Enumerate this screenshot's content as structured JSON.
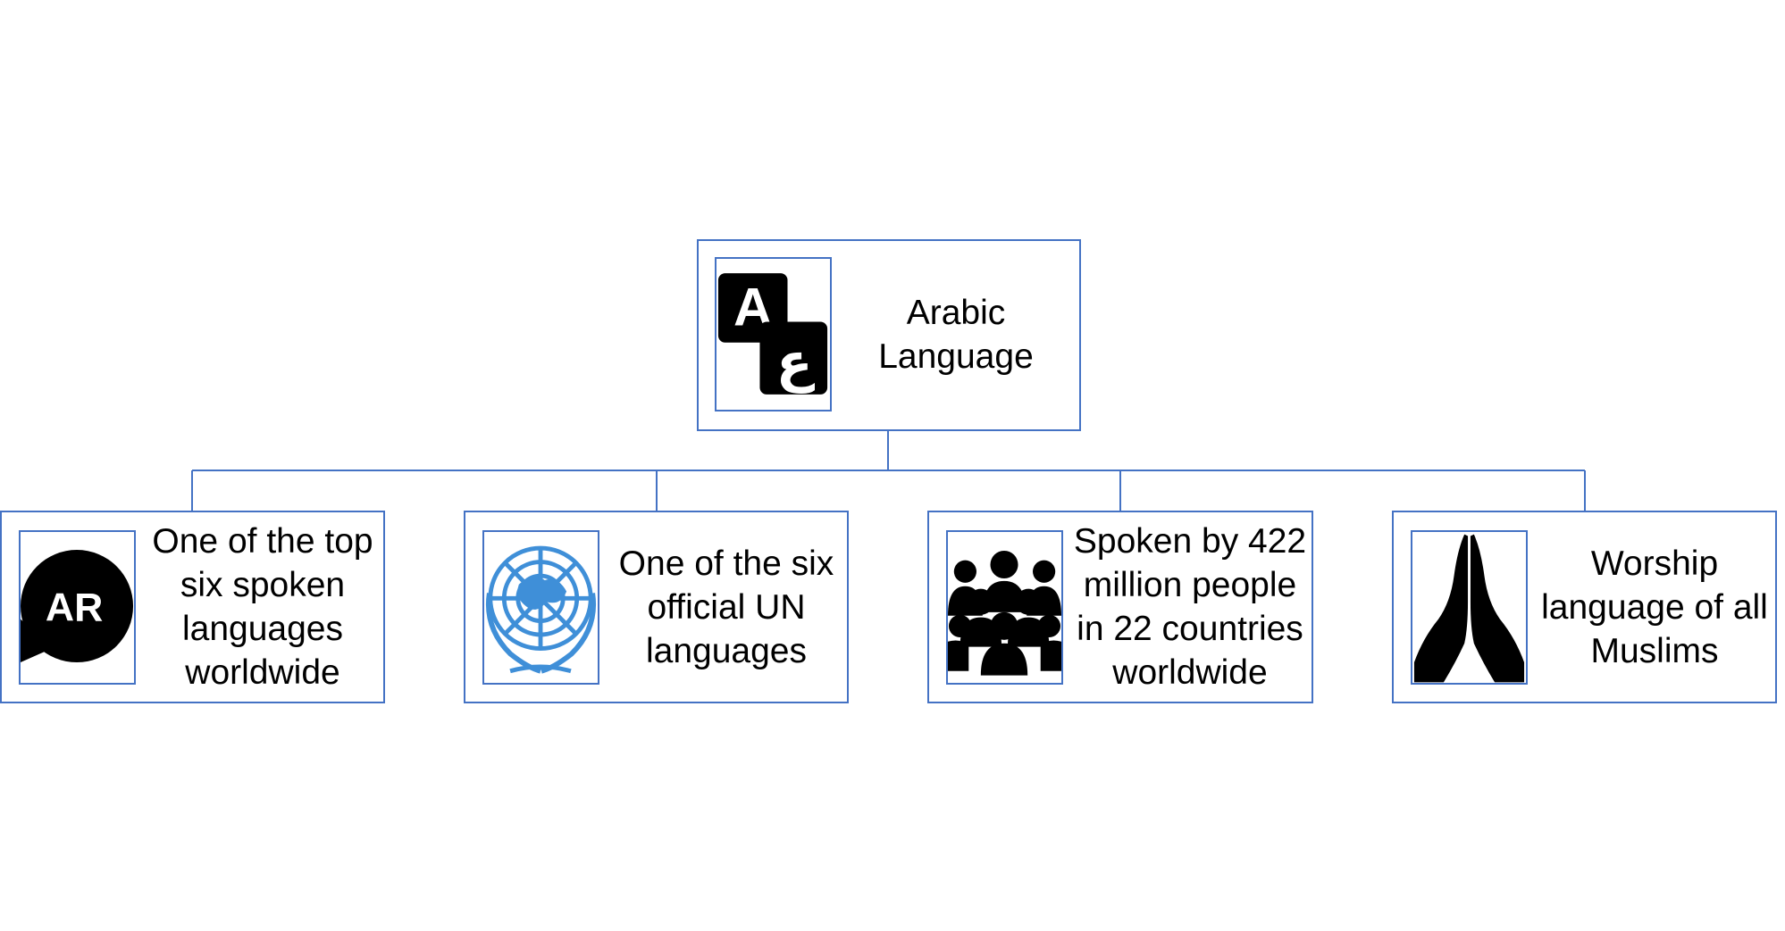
{
  "diagram": {
    "root": {
      "label": "Arabic\nLanguage",
      "icon": "arabic-letters-icon"
    },
    "children": [
      {
        "label": "One of the top\nsix spoken\nlanguages\nworldwide",
        "icon": "ar-speech-bubble-icon",
        "icon_text": "AR"
      },
      {
        "label": "One of the six\nofficial UN\nlanguages",
        "icon": "un-emblem-icon"
      },
      {
        "label": "Spoken by 422\nmillion people\nin 22 countries\nworldwide",
        "icon": "people-group-icon"
      },
      {
        "label": "Worship\nlanguage of all\nMuslims",
        "icon": "praying-hands-icon"
      }
    ],
    "colors": {
      "border": "#4472c4",
      "un_blue": "#3f8fd8",
      "icon_black": "#000000"
    }
  }
}
